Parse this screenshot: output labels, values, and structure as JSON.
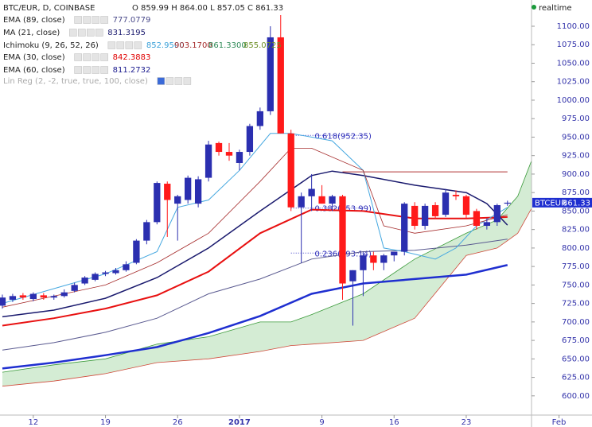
{
  "chart_data": {
    "type": "candlestick",
    "title": "BTC/EUR, D, COINBASE",
    "ohlc_text": "O 859.99 H 864.00 L 857.05 C 861.33",
    "status": "realtime",
    "up_color": "#2b2fb0",
    "down_color": "#ff1a1a",
    "x": [
      0,
      1,
      2,
      3,
      4,
      5,
      6,
      7,
      8,
      9,
      10,
      11,
      12,
      13,
      14,
      15,
      16,
      17,
      18,
      19,
      20,
      21,
      22,
      23,
      24,
      25,
      26,
      27,
      28,
      29,
      30,
      31,
      32,
      33,
      34,
      35,
      36,
      37,
      38,
      39,
      40,
      41,
      42,
      43,
      44,
      45,
      46,
      47,
      48,
      49
    ],
    "open": [
      722,
      730,
      736,
      731,
      736,
      733,
      735,
      742,
      752,
      757,
      765,
      766,
      770,
      780,
      810,
      835,
      887,
      860,
      865,
      860,
      895,
      942,
      930,
      915,
      930,
      965,
      985,
      1085,
      955,
      855,
      870,
      870,
      860,
      870,
      755,
      770,
      790,
      780,
      790,
      795,
      857,
      830,
      858,
      845,
      872,
      870,
      850,
      830,
      835,
      859.99
    ],
    "high": [
      737,
      738,
      739,
      740,
      739,
      737,
      744,
      753,
      762,
      767,
      769,
      773,
      782,
      812,
      838,
      890,
      890,
      872,
      898,
      897,
      945,
      944,
      942,
      933,
      968,
      990,
      1100,
      1115,
      960,
      875,
      900,
      885,
      872,
      872,
      770,
      795,
      795,
      792,
      795,
      862,
      862,
      860,
      862,
      880,
      878,
      872,
      853,
      840,
      860,
      864
    ],
    "low": [
      718,
      727,
      730,
      728,
      730,
      730,
      733,
      740,
      750,
      755,
      762,
      764,
      768,
      778,
      805,
      832,
      815,
      810,
      860,
      855,
      890,
      925,
      918,
      905,
      925,
      960,
      980,
      955,
      850,
      780,
      850,
      860,
      850,
      730,
      695,
      735,
      770,
      770,
      782,
      790,
      825,
      825,
      840,
      842,
      865,
      840,
      825,
      825,
      830,
      857.05
    ],
    "close": [
      733,
      735,
      733,
      738,
      733,
      735,
      740,
      750,
      760,
      765,
      767,
      770,
      778,
      810,
      835,
      888,
      865,
      870,
      895,
      893,
      940,
      930,
      925,
      930,
      965,
      985,
      1085,
      955,
      855,
      870,
      880,
      860,
      870,
      752,
      770,
      790,
      780,
      790,
      795,
      860,
      830,
      857,
      843,
      875,
      870,
      845,
      830,
      835,
      858,
      861.33
    ],
    "xlim": [
      -0.23,
      57.2
    ],
    "xticks": [
      {
        "value": 3,
        "label": "12"
      },
      {
        "value": 10,
        "label": "19"
      },
      {
        "value": 17,
        "label": "26"
      },
      {
        "value": 23,
        "label": "2017"
      },
      {
        "value": 31,
        "label": "9"
      },
      {
        "value": 38,
        "label": "16"
      },
      {
        "value": 45,
        "label": "23"
      },
      {
        "value": 54,
        "label": "Feb"
      }
    ],
    "ylim": [
      574,
      1135.5
    ],
    "yticks": [
      {
        "value": 600,
        "label": "600.00"
      },
      {
        "value": 625,
        "label": "625.00"
      },
      {
        "value": 650,
        "label": "650.00"
      },
      {
        "value": 675,
        "label": "675.00"
      },
      {
        "value": 700,
        "label": "700.00"
      },
      {
        "value": 725,
        "label": "725.00"
      },
      {
        "value": 750,
        "label": "750.00"
      },
      {
        "value": 775,
        "label": "775.00"
      },
      {
        "value": 800,
        "label": "800.00"
      },
      {
        "value": 825,
        "label": "825.00"
      },
      {
        "value": 850,
        "label": "850.00"
      },
      {
        "value": 875,
        "label": "875.00"
      },
      {
        "value": 900,
        "label": "900.00"
      },
      {
        "value": 925,
        "label": "925.00"
      },
      {
        "value": 950,
        "label": "950.00"
      },
      {
        "value": 975,
        "label": "975.00"
      },
      {
        "value": 1000,
        "label": "1000.00"
      },
      {
        "value": 1025,
        "label": "1025.00"
      },
      {
        "value": 1050,
        "label": "1050.00"
      },
      {
        "value": 1075,
        "label": "1075.00"
      },
      {
        "value": 1100,
        "label": "1100.00"
      }
    ],
    "legend": [
      {
        "name": "EMA (89, close)",
        "values": [
          "777.0779"
        ],
        "colors": [
          "#4a4a8a"
        ]
      },
      {
        "name": "MA (21, close)",
        "values": [
          "831.3195"
        ],
        "colors": [
          "#1a1a6e"
        ]
      },
      {
        "name": "Ichimoku (9, 26, 52, 26)",
        "values": [
          "852.9500",
          "903.1700",
          "861.3300",
          "855.0725"
        ],
        "colors": [
          "#3aa0d8",
          "#a52a2a",
          "#2e8b57",
          "#6b8e23"
        ]
      },
      {
        "name": "EMA (30, close)",
        "values": [
          "842.3883"
        ],
        "colors": [
          "#e00000"
        ]
      },
      {
        "name": "EMA (60, close)",
        "values": [
          "811.2732"
        ],
        "colors": [
          "#1a1a8e"
        ]
      },
      {
        "name": "Lin Reg (2, -2, true, true, 100, close)",
        "values": [],
        "colors": []
      }
    ],
    "cloud": {
      "x": [
        0,
        5,
        10,
        15,
        20,
        25,
        28,
        30,
        35,
        40,
        45,
        48,
        50,
        52,
        54,
        55
      ],
      "span_a": [
        632,
        642,
        650,
        670,
        680,
        700,
        700,
        710,
        738,
        785,
        820,
        838,
        870,
        942,
        945,
        940
      ],
      "span_b": [
        613,
        620,
        630,
        645,
        650,
        660,
        668,
        670,
        675,
        705,
        790,
        800,
        820,
        870,
        878,
        880
      ],
      "fill": "#d4ecd4",
      "color_a": "#3a9a3a",
      "color_b": "#d04a3a"
    },
    "lines": [
      {
        "color": "#1f2fd0",
        "width": 2.5,
        "x": [
          0,
          5,
          10,
          15,
          20,
          25,
          30,
          35,
          40,
          45,
          49
        ],
        "values": [
          637,
          645,
          655,
          666,
          685,
          708,
          738,
          752,
          758,
          764,
          777
        ]
      },
      {
        "color": "#5a5a90",
        "width": 1,
        "x": [
          0,
          5,
          10,
          15,
          20,
          25,
          30,
          35,
          40,
          45,
          49
        ],
        "values": [
          662,
          672,
          686,
          705,
          738,
          758,
          785,
          795,
          797,
          804,
          812
        ]
      },
      {
        "color": "#e81010",
        "width": 2,
        "x": [
          0,
          5,
          10,
          15,
          20,
          25,
          30,
          35,
          40,
          45,
          49
        ],
        "values": [
          695,
          705,
          718,
          736,
          768,
          820,
          852,
          850,
          840,
          840,
          842
        ]
      },
      {
        "color": "#1a1a6e",
        "width": 1.5,
        "x": [
          0,
          5,
          10,
          15,
          20,
          25,
          30,
          32,
          35,
          40,
          45,
          47,
          49
        ],
        "values": [
          707,
          716,
          732,
          760,
          800,
          850,
          898,
          904,
          898,
          885,
          875,
          860,
          831
        ]
      },
      {
        "color": "#46a8e0",
        "width": 1,
        "x": [
          0,
          10,
          15,
          17,
          20,
          23,
          26,
          28,
          32,
          35,
          37,
          39,
          42,
          44,
          46,
          49
        ],
        "values": [
          725,
          765,
          795,
          855,
          865,
          905,
          955,
          955,
          945,
          905,
          800,
          795,
          785,
          800,
          830,
          855
        ]
      },
      {
        "color": "#a52a2a",
        "width": 0.8,
        "x": [
          0,
          10,
          15,
          20,
          25,
          28,
          30,
          35,
          37,
          40,
          45,
          49
        ],
        "values": [
          720,
          750,
          780,
          820,
          890,
          935,
          935,
          905,
          830,
          820,
          830,
          845
        ]
      }
    ],
    "hline": {
      "value": 903,
      "from": 33,
      "to": 49,
      "color": "#b03030"
    },
    "fib": [
      {
        "label": "0.618(952.35)",
        "value": 952.35
      },
      {
        "label": "0.382(853.99)",
        "value": 853.99
      },
      {
        "label": "0.236(793.14)",
        "value": 793.14
      }
    ],
    "fib_range": [
      28,
      35
    ],
    "last": {
      "name": "BTCEUR",
      "value": 861.33,
      "color": "#1f2fd0"
    }
  }
}
